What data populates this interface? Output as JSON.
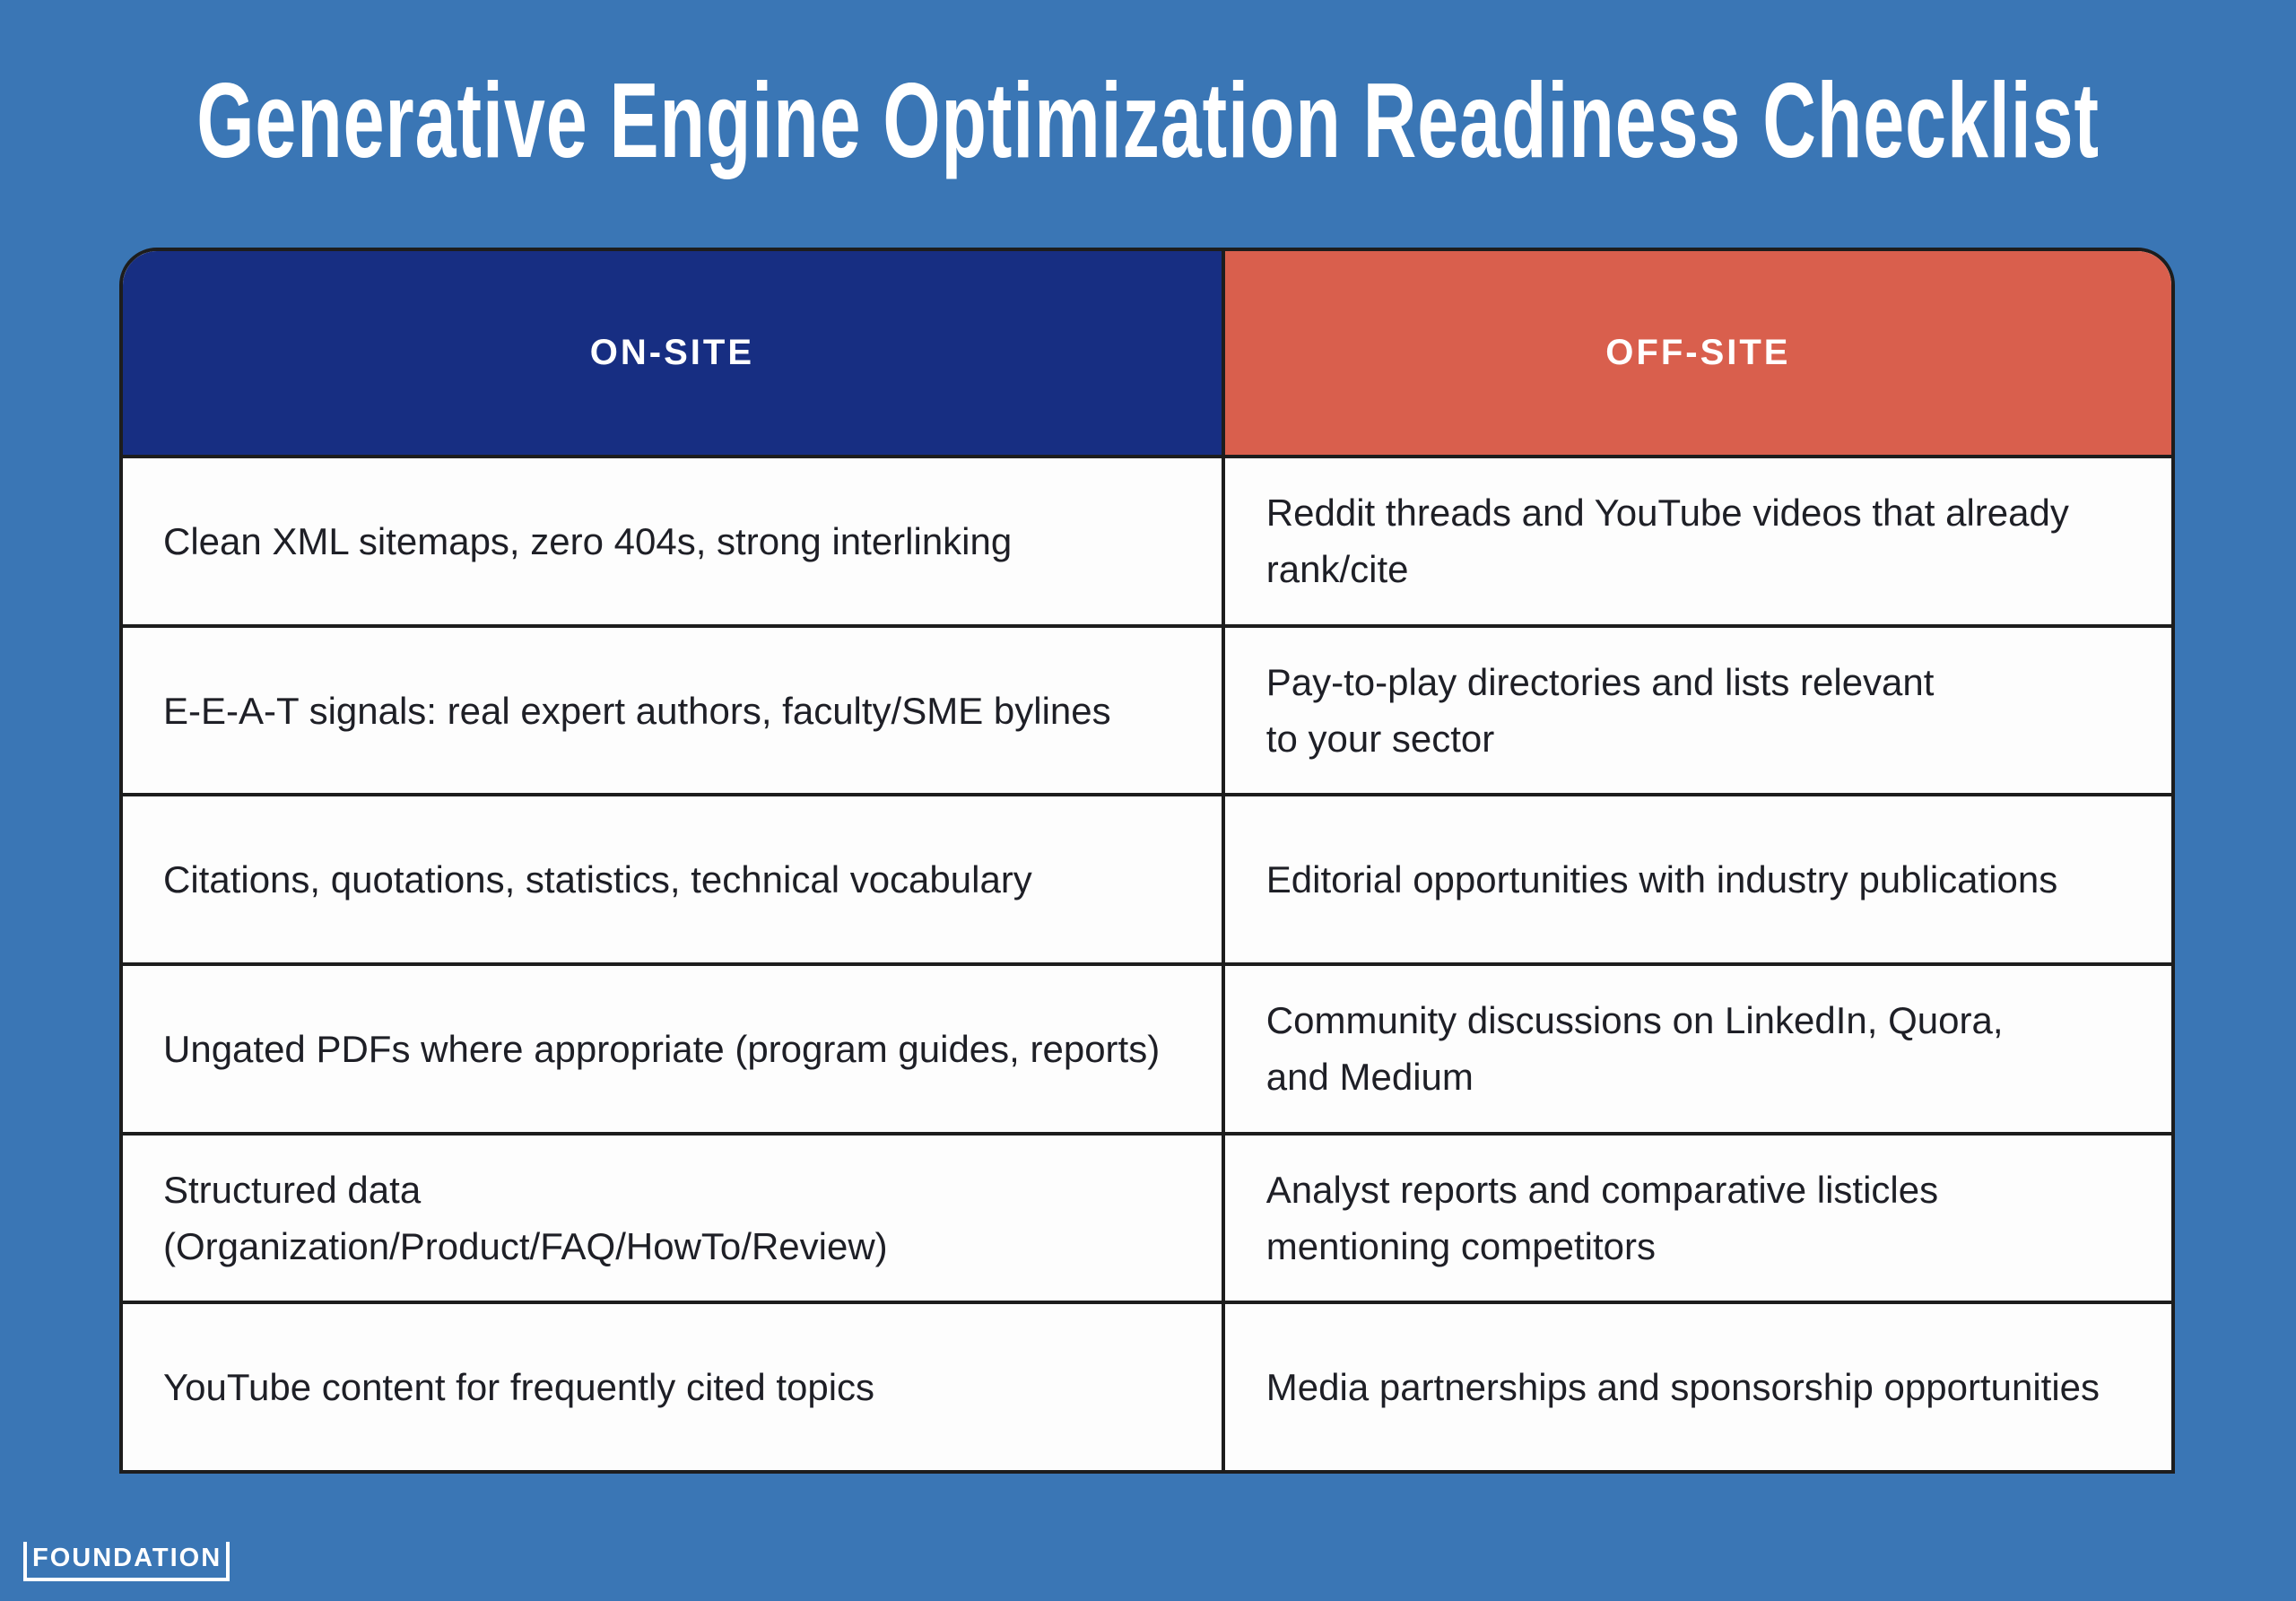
{
  "page": {
    "title": "Generative Engine Optimization Readiness Checklist"
  },
  "table": {
    "headers": {
      "onsite": "ON-SITE",
      "offsite": "OFF-SITE"
    },
    "rows": [
      {
        "onsite": "Clean XML sitemaps, zero 404s, strong interlinking",
        "offsite": "Reddit threads and YouTube videos that already\nrank/cite"
      },
      {
        "onsite": "E-E-A-T signals: real expert authors, faculty/SME bylines",
        "offsite": "Pay-to-play directories and lists relevant\nto your sector"
      },
      {
        "onsite": "Citations, quotations, statistics, technical vocabulary",
        "offsite": "Editorial opportunities with industry publications"
      },
      {
        "onsite": "Ungated PDFs where appropriate (program guides, reports)",
        "offsite": "Community discussions on LinkedIn, Quora,\nand Medium"
      },
      {
        "onsite": "Structured data\n(Organization/Product/FAQ/HowTo/Review)",
        "offsite": "Analyst reports and comparative listicles\nmentioning competitors"
      },
      {
        "onsite": "YouTube content for frequently cited topics",
        "offsite": "Media partnerships and sponsorship opportunities"
      }
    ]
  },
  "footer": {
    "logo": "FOUNDATION"
  },
  "colors": {
    "background": "#3a76b5",
    "onsite_header": "#172e82",
    "offsite_header": "#d95f4d",
    "table_border": "#1d1d1d",
    "cell_background": "#fdfdfd",
    "cell_text": "#1e1f26",
    "title_text": "#ffffff"
  }
}
